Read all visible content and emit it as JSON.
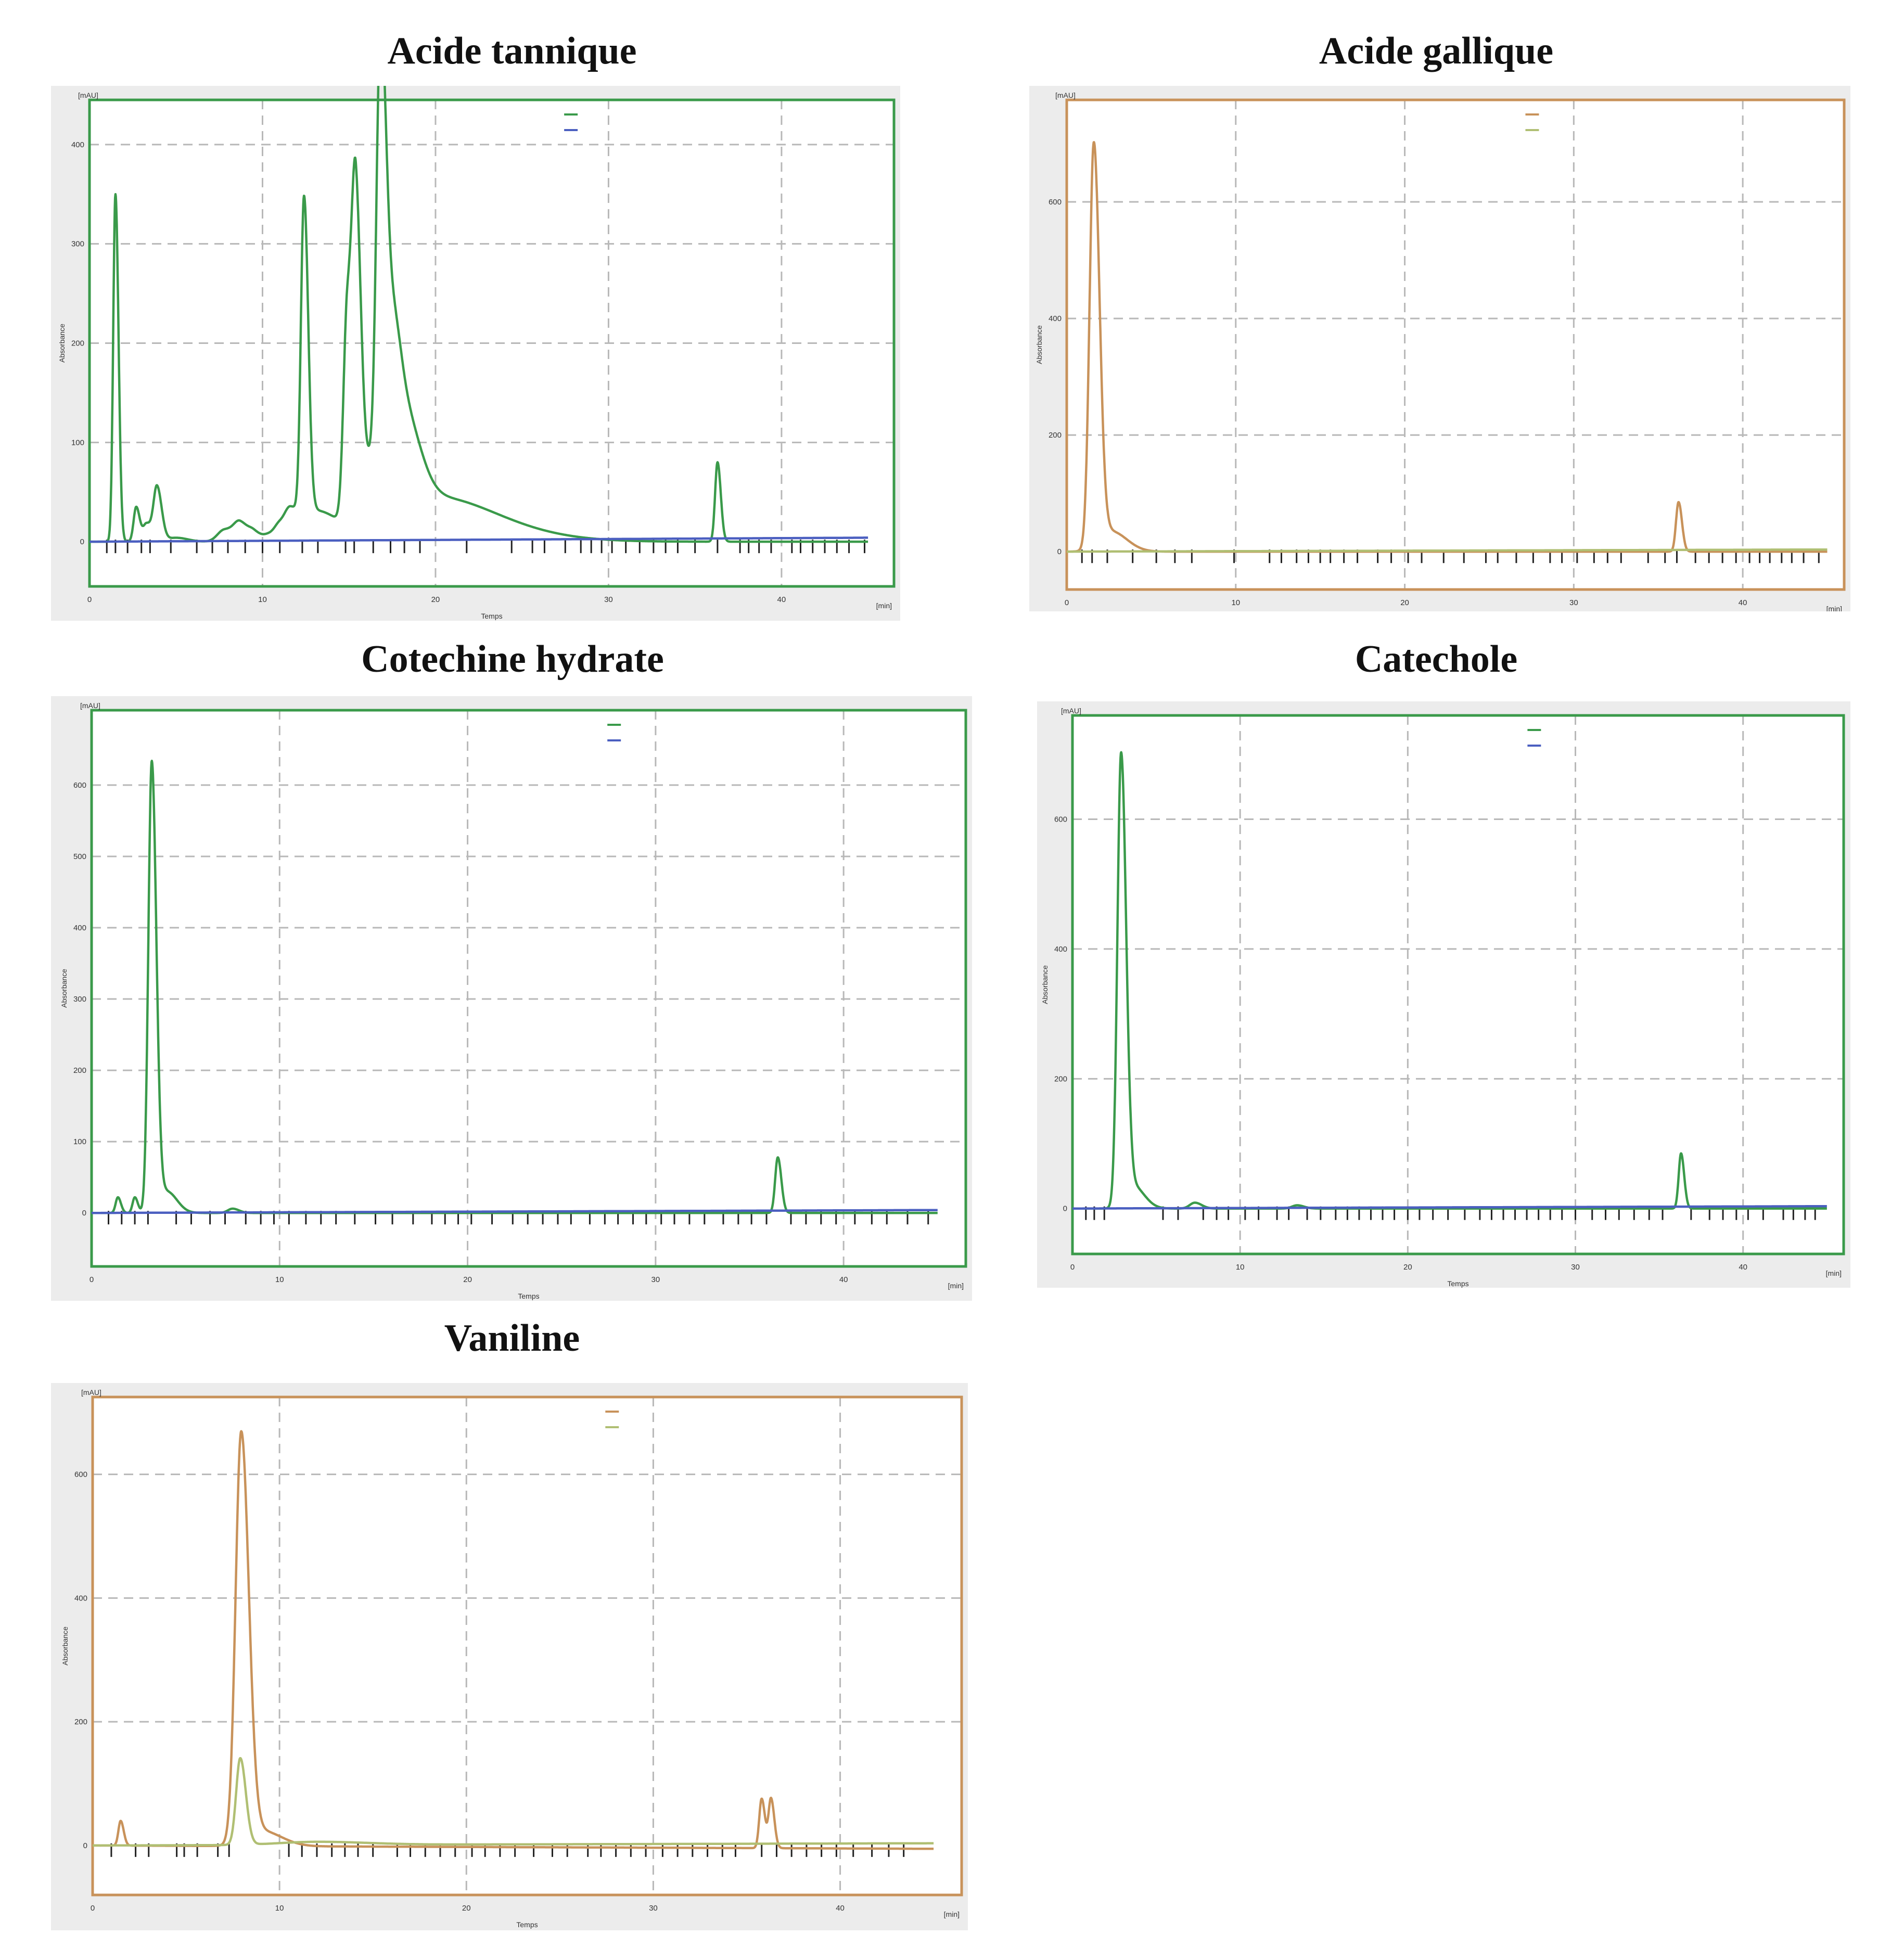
{
  "figure": {
    "panels": [
      {
        "id": "tannique",
        "title": "Acide tannique"
      },
      {
        "id": "gallique",
        "title": "Acide gallique"
      },
      {
        "id": "cotechine",
        "title": "Cotechine hydrate"
      },
      {
        "id": "catechole",
        "title": "Catechole"
      },
      {
        "id": "vaniline",
        "title": "Vaniline"
      }
    ]
  },
  "chart_data": [
    {
      "id": "tannique",
      "type": "line",
      "title": "Acide tannique",
      "xlabel": "Temps",
      "ylabel": "Absorbance",
      "y_unit": "[mAU]",
      "x_unit": "[min]",
      "xlim": [
        0,
        46.5
      ],
      "ylim": [
        -45,
        445
      ],
      "xticks": [
        0,
        10,
        20,
        30,
        40
      ],
      "yticks": [
        0,
        100,
        200,
        300,
        400
      ],
      "frame_color": "#3a9a4a",
      "grid": true,
      "series": [
        {
          "color": "#3a9a4a",
          "peaks": [
            [
              1.5,
              350,
              0.13
            ],
            [
              2.7,
              35,
              0.15
            ],
            [
              3.3,
              18,
              0.2
            ],
            [
              3.9,
              55,
              0.2
            ],
            [
              5.0,
              4,
              0.5
            ],
            [
              7.8,
              12,
              0.4
            ],
            [
              8.7,
              18,
              0.35
            ],
            [
              9.5,
              8,
              0.3
            ],
            [
              10.4,
              6,
              0.35
            ],
            [
              11.0,
              12,
              0.3
            ],
            [
              11.6,
              20,
              0.3
            ],
            [
              12.4,
              320,
              0.18
            ],
            [
              13.0,
              30,
              1.0
            ],
            [
              14.9,
              215,
              0.22
            ],
            [
              15.4,
              300,
              0.22
            ],
            [
              16.3,
              60,
              0.5
            ],
            [
              16.8,
              370,
              0.22
            ],
            [
              17.3,
              145,
              0.4
            ],
            [
              18.1,
              95,
              0.7
            ],
            [
              19.5,
              35,
              2.5
            ],
            [
              22.0,
              12,
              3.0
            ],
            [
              36.3,
              80,
              0.14
            ]
          ],
          "baseline": 0,
          "xrange": [
            0,
            45
          ]
        },
        {
          "color": "#4b5fc0",
          "peaks": [],
          "baseline": 0,
          "slope": 0.09,
          "xrange": [
            0,
            45
          ]
        }
      ],
      "event_ticks": [
        1,
        1.5,
        2.2,
        3,
        3.5,
        4.7,
        6.2,
        7.1,
        8,
        9,
        10,
        11,
        12.3,
        13.2,
        14.8,
        15.3,
        16.4,
        17.4,
        18.2,
        19.1,
        21.8,
        24.4,
        25.6,
        26.3,
        27.5,
        28.4,
        29,
        29.6,
        30.2,
        31,
        31.8,
        32.6,
        33.3,
        34,
        35,
        36.3,
        37.6,
        38.1,
        38.7,
        39.4,
        40.6,
        41.1,
        41.8,
        42.5,
        43.2,
        43.9,
        44.8
      ]
    },
    {
      "id": "gallique",
      "type": "line",
      "title": "Acide gallique",
      "xlabel": "",
      "ylabel": "Absorbance",
      "y_unit": "[mAU]",
      "x_unit": "[min]",
      "xlim": [
        0,
        46
      ],
      "ylim": [
        -65,
        775
      ],
      "xticks": [
        0,
        10,
        20,
        30,
        40
      ],
      "yticks": [
        0,
        200,
        400,
        600
      ],
      "frame_color": "#c8925a",
      "grid": true,
      "series": [
        {
          "color": "#c8925a",
          "peaks": [
            [
              1.6,
              690,
              0.25
            ],
            [
              2.6,
              35,
              0.7
            ],
            [
              36.2,
              85,
              0.15
            ]
          ],
          "baseline": 0,
          "xrange": [
            0,
            45
          ]
        },
        {
          "color": "#b0bf73",
          "peaks": [],
          "baseline": 0,
          "slope": 0.08,
          "xrange": [
            0,
            45
          ]
        }
      ],
      "event_ticks": [
        0.9,
        1.5,
        2.4,
        3.9,
        5.3,
        6.4,
        7.4,
        9.9,
        12,
        12.7,
        13.6,
        14.3,
        15,
        15.6,
        16.4,
        17.2,
        18.4,
        19.2,
        20.2,
        21,
        22.3,
        23.5,
        24.8,
        25.5,
        26.6,
        27.6,
        28.6,
        29.3,
        30.2,
        31.2,
        32,
        32.8,
        34.4,
        35.4,
        36.1,
        37.2,
        38,
        38.8,
        39.6,
        40.4,
        41,
        41.6,
        42.3,
        42.9,
        43.6,
        44.5
      ]
    },
    {
      "id": "cotechine",
      "type": "line",
      "title": "Cotechine hydrate",
      "xlabel": "Temps",
      "ylabel": "Absorbance",
      "y_unit": "[mAU]",
      "x_unit": "[min]",
      "xlim": [
        0,
        46.5
      ],
      "ylim": [
        -75,
        705
      ],
      "xticks": [
        0,
        10,
        20,
        30,
        40
      ],
      "yticks": [
        0,
        100,
        200,
        300,
        400,
        500,
        600
      ],
      "frame_color": "#3a9a4a",
      "grid": true,
      "series": [
        {
          "color": "#3a9a4a",
          "peaks": [
            [
              1.4,
              22,
              0.12
            ],
            [
              2.3,
              22,
              0.12
            ],
            [
              3.2,
              630,
              0.18
            ],
            [
              4.0,
              30,
              0.4
            ],
            [
              7.5,
              6,
              0.25
            ],
            [
              36.5,
              78,
              0.14
            ]
          ],
          "baseline": 0,
          "xrange": [
            0,
            45
          ]
        },
        {
          "color": "#4b5fc0",
          "peaks": [],
          "baseline": 0,
          "slope": 0.09,
          "xrange": [
            0,
            45
          ]
        }
      ],
      "event_ticks": [
        0.9,
        1.6,
        2.3,
        3,
        4.5,
        5.3,
        6.3,
        7.1,
        8.2,
        9,
        9.7,
        10.5,
        11.4,
        12.2,
        13,
        14,
        15.1,
        16,
        17.1,
        18.1,
        18.8,
        19.5,
        20.2,
        21.3,
        22.4,
        23.2,
        24,
        24.8,
        25.5,
        26.5,
        27.3,
        28,
        28.8,
        29.5,
        30.3,
        31,
        31.8,
        32.6,
        33.6,
        34.4,
        35.1,
        35.9,
        37.2,
        38,
        38.8,
        39.6,
        40.6,
        41.5,
        42.3,
        43.4,
        44.5
      ]
    },
    {
      "id": "catechole",
      "type": "line",
      "title": "Catechole",
      "xlabel": "Temps",
      "ylabel": "Absorbance",
      "y_unit": "[mAU]",
      "x_unit": "[min]",
      "xlim": [
        0,
        46
      ],
      "ylim": [
        -70,
        760
      ],
      "xticks": [
        0,
        10,
        20,
        30,
        40
      ],
      "yticks": [
        0,
        200,
        400,
        600
      ],
      "frame_color": "#3a9a4a",
      "grid": true,
      "series": [
        {
          "color": "#3a9a4a",
          "peaks": [
            [
              2.9,
              690,
              0.22
            ],
            [
              3.6,
              35,
              0.5
            ],
            [
              7.3,
              9,
              0.3
            ],
            [
              13.4,
              5,
              0.3
            ],
            [
              36.3,
              85,
              0.14
            ]
          ],
          "baseline": 0,
          "xrange": [
            0,
            45
          ]
        },
        {
          "color": "#4b5fc0",
          "peaks": [],
          "baseline": 0,
          "slope": 0.08,
          "xrange": [
            0,
            45
          ]
        }
      ],
      "event_ticks": [
        0.8,
        1.3,
        1.9,
        5.4,
        6.3,
        7.8,
        8.6,
        9.3,
        10.3,
        11.1,
        12.2,
        12.9,
        14,
        14.8,
        15.7,
        16.4,
        17.1,
        17.8,
        18.5,
        19.2,
        20,
        20.7,
        21.5,
        22.4,
        23.4,
        24.3,
        25,
        25.7,
        26.4,
        27.1,
        27.8,
        28.5,
        29.2,
        30,
        31,
        31.8,
        32.6,
        33.5,
        34.4,
        35.2,
        36.9,
        38,
        38.8,
        39.6,
        40.3,
        41.2,
        42.4,
        43,
        43.7,
        44.3
      ]
    },
    {
      "id": "vaniline",
      "type": "line",
      "title": "Vaniline",
      "xlabel": "Temps",
      "ylabel": "Absorbance",
      "y_unit": "[mAU]",
      "x_unit": "[min]",
      "xlim": [
        0,
        46.5
      ],
      "ylim": [
        -80,
        725
      ],
      "xticks": [
        0,
        10,
        20,
        30,
        40
      ],
      "yticks": [
        0,
        200,
        400,
        600
      ],
      "frame_color": "#c8925a",
      "grid": true,
      "series": [
        {
          "color": "#c8925a",
          "peaks": [
            [
              1.5,
              40,
              0.12
            ],
            [
              7.95,
              660,
              0.3
            ],
            [
              9.0,
              25,
              0.8
            ],
            [
              35.8,
              80,
              0.13
            ],
            [
              36.3,
              80,
              0.13
            ]
          ],
          "baseline": 0,
          "slope": -0.12,
          "xrange": [
            0,
            45
          ]
        },
        {
          "color": "#b0bf73",
          "peaks": [
            [
              7.9,
              140,
              0.22
            ],
            [
              12.0,
              5,
              2.0
            ]
          ],
          "baseline": 0,
          "slope": 0.08,
          "xrange": [
            0,
            45
          ]
        }
      ],
      "event_ticks": [
        1,
        2.3,
        3,
        4.5,
        4.9,
        5.6,
        6.7,
        7.3,
        10.5,
        11.2,
        12,
        12.8,
        13.5,
        14.2,
        15,
        16.3,
        17,
        17.8,
        18.6,
        19.4,
        20.3,
        21,
        21.8,
        22.6,
        23.6,
        24.6,
        25.4,
        26.5,
        27.2,
        28,
        28.8,
        29.6,
        30.5,
        31.3,
        32.1,
        32.9,
        33.7,
        34.4,
        35.8,
        36.6,
        37.4,
        38.2,
        39,
        39.8,
        40.7,
        41.7,
        42.6,
        43.4
      ]
    }
  ]
}
